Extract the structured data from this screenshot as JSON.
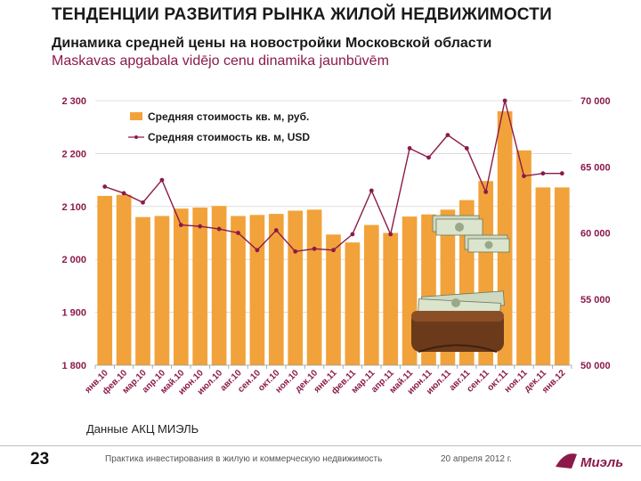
{
  "header": {
    "title": "ТЕНДЕНЦИИ РАЗВИТИЯ РЫНКА ЖИЛОЙ НЕДВИЖИМОСТИ",
    "subtitle_ru": "Динамика средней цены на новостройки Московской области",
    "subtitle_lv": "Maskavas apgabala vidējo cenu dinamika jaunbūvēm"
  },
  "colors": {
    "bar": "#f2a23a",
    "line": "#8b1a4a",
    "axis_label": "#8b1a4a",
    "grid": "#c8c8c8"
  },
  "chart_data": {
    "type": "bar+line",
    "categories": [
      "янв.10",
      "фев.10",
      "мар.10",
      "апр.10",
      "май.10",
      "июн.10",
      "июл.10",
      "авг.10",
      "сен.10",
      "окт.10",
      "ноя.10",
      "дек.10",
      "янв.11",
      "фев.11",
      "мар.11",
      "апр.11",
      "май.11",
      "июн.11",
      "июл.11",
      "авг.11",
      "сен.11",
      "окт.11",
      "ноя.11",
      "дек.11",
      "янв.12"
    ],
    "series": [
      {
        "name": "Средняя стоимость кв. м, руб.",
        "type": "bar",
        "axis": "left",
        "values": [
          2120,
          2122,
          2080,
          2082,
          2096,
          2098,
          2101,
          2082,
          2084,
          2086,
          2092,
          2094,
          2047,
          2032,
          2065,
          2050,
          2081,
          2085,
          2094,
          2112,
          2148,
          2280,
          2206,
          2136,
          2136
        ]
      },
      {
        "name": "Средняя стоимость кв. м, USD",
        "type": "line",
        "axis": "right",
        "values": [
          63500,
          63000,
          62300,
          64000,
          60600,
          60500,
          60300,
          60000,
          58700,
          60200,
          58600,
          58800,
          58700,
          59900,
          63200,
          59900,
          66400,
          65700,
          67400,
          66400,
          63100,
          70000,
          64300,
          64500,
          64500
        ]
      }
    ],
    "y_left": {
      "min": 1800,
      "max": 2300,
      "ticks": [
        "1 800",
        "1 900",
        "2 000",
        "2 100",
        "2 200",
        "2 300"
      ]
    },
    "y_right": {
      "min": 50000,
      "max": 70000,
      "ticks": [
        "50 000",
        "55 000",
        "60 000",
        "65 000",
        "70 000"
      ]
    },
    "legend": {
      "position": "top-left",
      "entries": [
        "Средняя стоимость кв. м, руб.",
        "Средняя стоимость кв. м, USD"
      ]
    }
  },
  "source_note": "Данные АКЦ МИЭЛЬ",
  "footer": {
    "page_number": "23",
    "caption": "Практика инвестирования в жилую и коммерческую недвижимость",
    "date": "20 апреля 2012 г.",
    "logo_text": "Миэль"
  }
}
